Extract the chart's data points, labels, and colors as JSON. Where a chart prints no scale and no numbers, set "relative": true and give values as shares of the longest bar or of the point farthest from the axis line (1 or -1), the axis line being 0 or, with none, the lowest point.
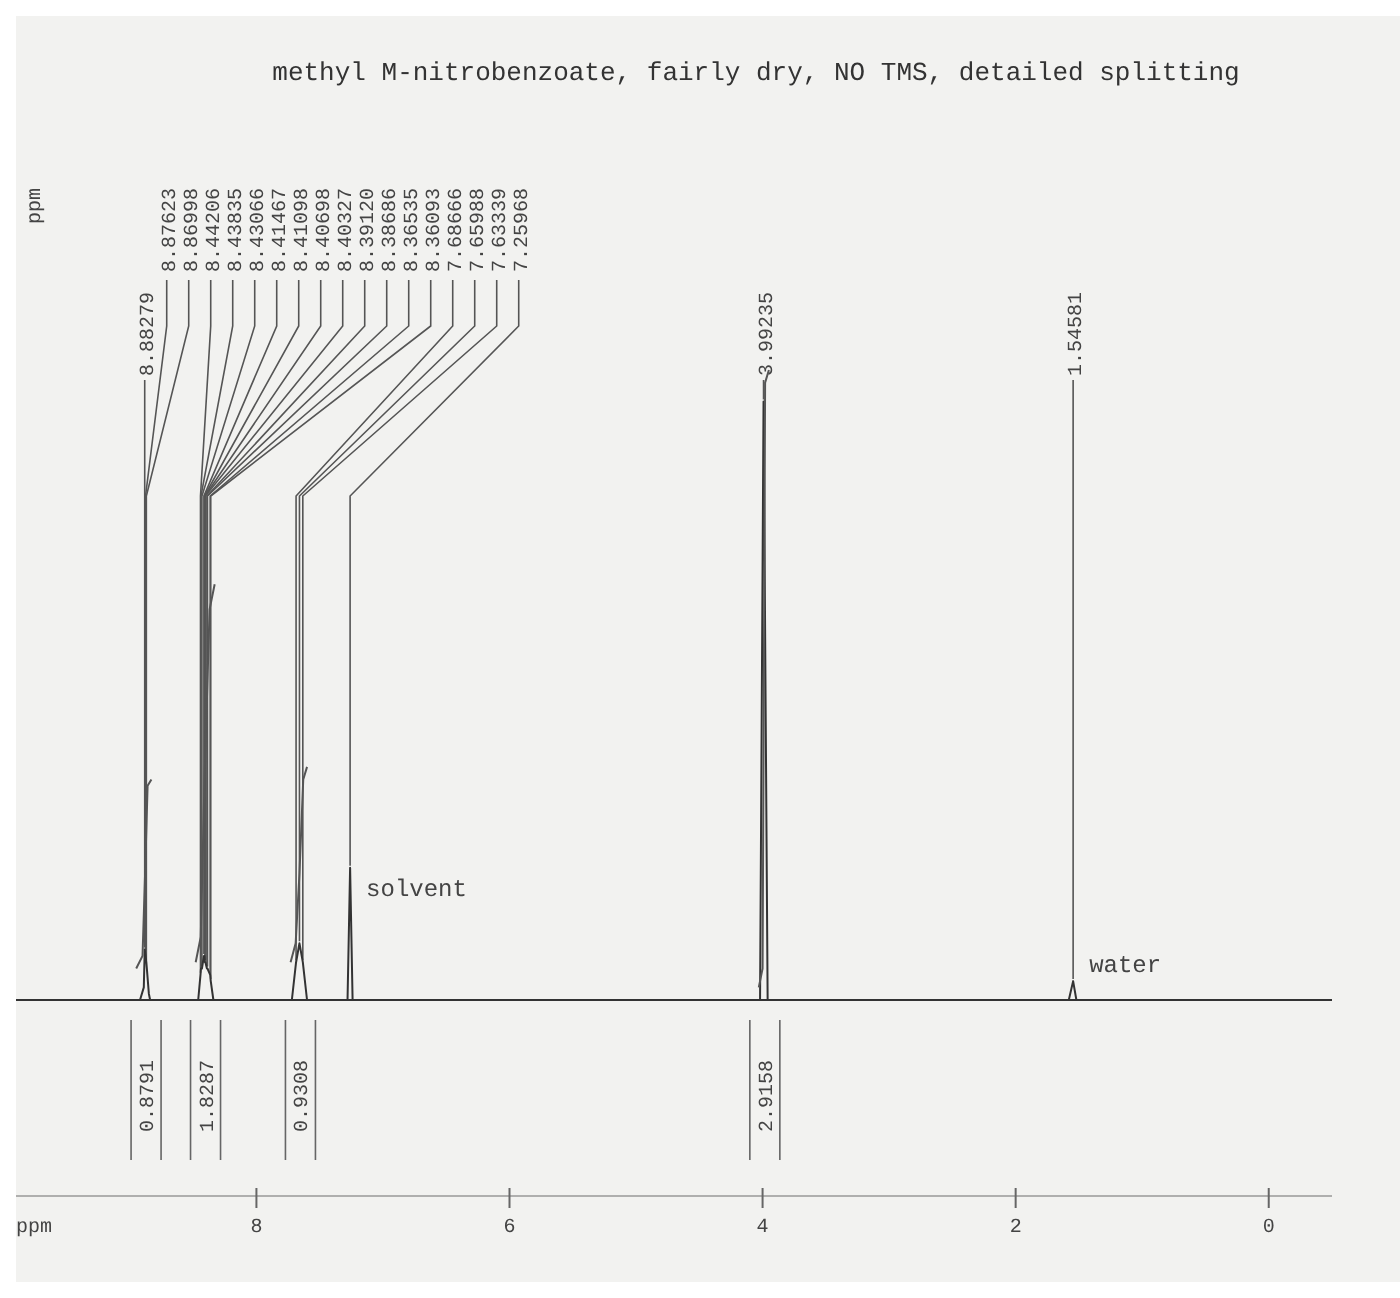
{
  "chart_data": {
    "type": "line",
    "title": "methyl M-nitrobenzoate,  fairly dry, NO TMS, detailed splitting",
    "xlabel": "ppm",
    "relative": true,
    "line_style": "solid",
    "xlim": [
      9.9,
      -0.5
    ],
    "xticks": [
      8,
      6,
      4,
      2,
      0
    ],
    "series": [
      {
        "color": "#333333",
        "x": [
          9.9,
          8.92,
          8.89,
          8.88279,
          8.87623,
          8.86998,
          8.85,
          8.84,
          8.46,
          8.44206,
          8.43835,
          8.43066,
          8.41467,
          8.41098,
          8.40698,
          8.40327,
          8.3912,
          8.38686,
          8.36535,
          8.36093,
          8.34,
          7.72,
          7.68666,
          7.65988,
          7.63339,
          7.6,
          7.28,
          7.25968,
          7.24,
          4.02,
          3.99235,
          3.96,
          1.58,
          1.54581,
          1.52,
          -0.5
        ],
        "values": [
          0,
          0,
          0.02,
          0.08,
          0.07,
          0.06,
          0.01,
          0,
          0,
          0.04,
          0.05,
          0.05,
          0.07,
          0.07,
          0.06,
          0.06,
          0.05,
          0.05,
          0.04,
          0.03,
          0,
          0,
          0.06,
          0.09,
          0.06,
          0,
          0,
          0.21,
          0,
          0,
          0.95,
          0,
          0,
          0.03,
          0,
          0
        ]
      },
      {
        "color": "#555555",
        "x": [
          8.95,
          8.9,
          8.88,
          8.86,
          8.83
        ],
        "values": [
          0.05,
          0.07,
          0.2,
          0.34,
          0.35
        ]
      },
      {
        "color": "#555555",
        "x": [
          8.48,
          8.44,
          8.41,
          8.37,
          8.33
        ],
        "values": [
          0.06,
          0.1,
          0.35,
          0.62,
          0.66
        ]
      },
      {
        "color": "#555555",
        "x": [
          7.73,
          7.69,
          7.66,
          7.63,
          7.6
        ],
        "values": [
          0.06,
          0.09,
          0.2,
          0.35,
          0.37
        ]
      },
      {
        "color": "#555555",
        "x": [
          4.03,
          4.0,
          3.99,
          3.98,
          3.95
        ],
        "values": [
          0.02,
          0.05,
          0.5,
          0.98,
          1.0
        ]
      }
    ],
    "annotations": [
      "ppm",
      "0.8791",
      "1.8287",
      "0.9308",
      "2.9158",
      {
        "text": "8.88279",
        "x": 8.88279,
        "y": 0.08
      },
      {
        "text": "8.87623",
        "x": 8.87623,
        "y": 0.07
      },
      {
        "text": "8.86998",
        "x": 8.86998,
        "y": 0.06
      },
      {
        "text": "8.44206",
        "x": 8.44206,
        "y": 0.04
      },
      {
        "text": "8.43835",
        "x": 8.43835,
        "y": 0.05
      },
      {
        "text": "8.43066",
        "x": 8.43066,
        "y": 0.05
      },
      {
        "text": "8.41467",
        "x": 8.41467,
        "y": 0.07
      },
      {
        "text": "8.41098",
        "x": 8.41098,
        "y": 0.07
      },
      {
        "text": "8.40698",
        "x": 8.40698,
        "y": 0.06
      },
      {
        "text": "8.40327",
        "x": 8.40327,
        "y": 0.06
      },
      {
        "text": "8.39120",
        "x": 8.3912,
        "y": 0.05
      },
      {
        "text": "8.38686",
        "x": 8.38686,
        "y": 0.05
      },
      {
        "text": "8.36535",
        "x": 8.36535,
        "y": 0.04
      },
      {
        "text": "8.36093",
        "x": 8.36093,
        "y": 0.03
      },
      {
        "text": "7.68666",
        "x": 7.68666,
        "y": 0.06
      },
      {
        "text": "7.65988",
        "x": 7.65988,
        "y": 0.09
      },
      {
        "text": "7.63339",
        "x": 7.63339,
        "y": 0.06
      },
      {
        "text": "7.25968",
        "x": 7.25968,
        "y": 0.21
      },
      {
        "text": "3.99235",
        "x": 3.99235,
        "y": 0.95
      },
      {
        "text": "1.54581",
        "x": 1.54581,
        "y": 0.03
      },
      {
        "text": "solvent",
        "x": 7.25968,
        "y": 0.21
      },
      {
        "text": "water",
        "x": 1.54581,
        "y": 0.03
      }
    ]
  }
}
